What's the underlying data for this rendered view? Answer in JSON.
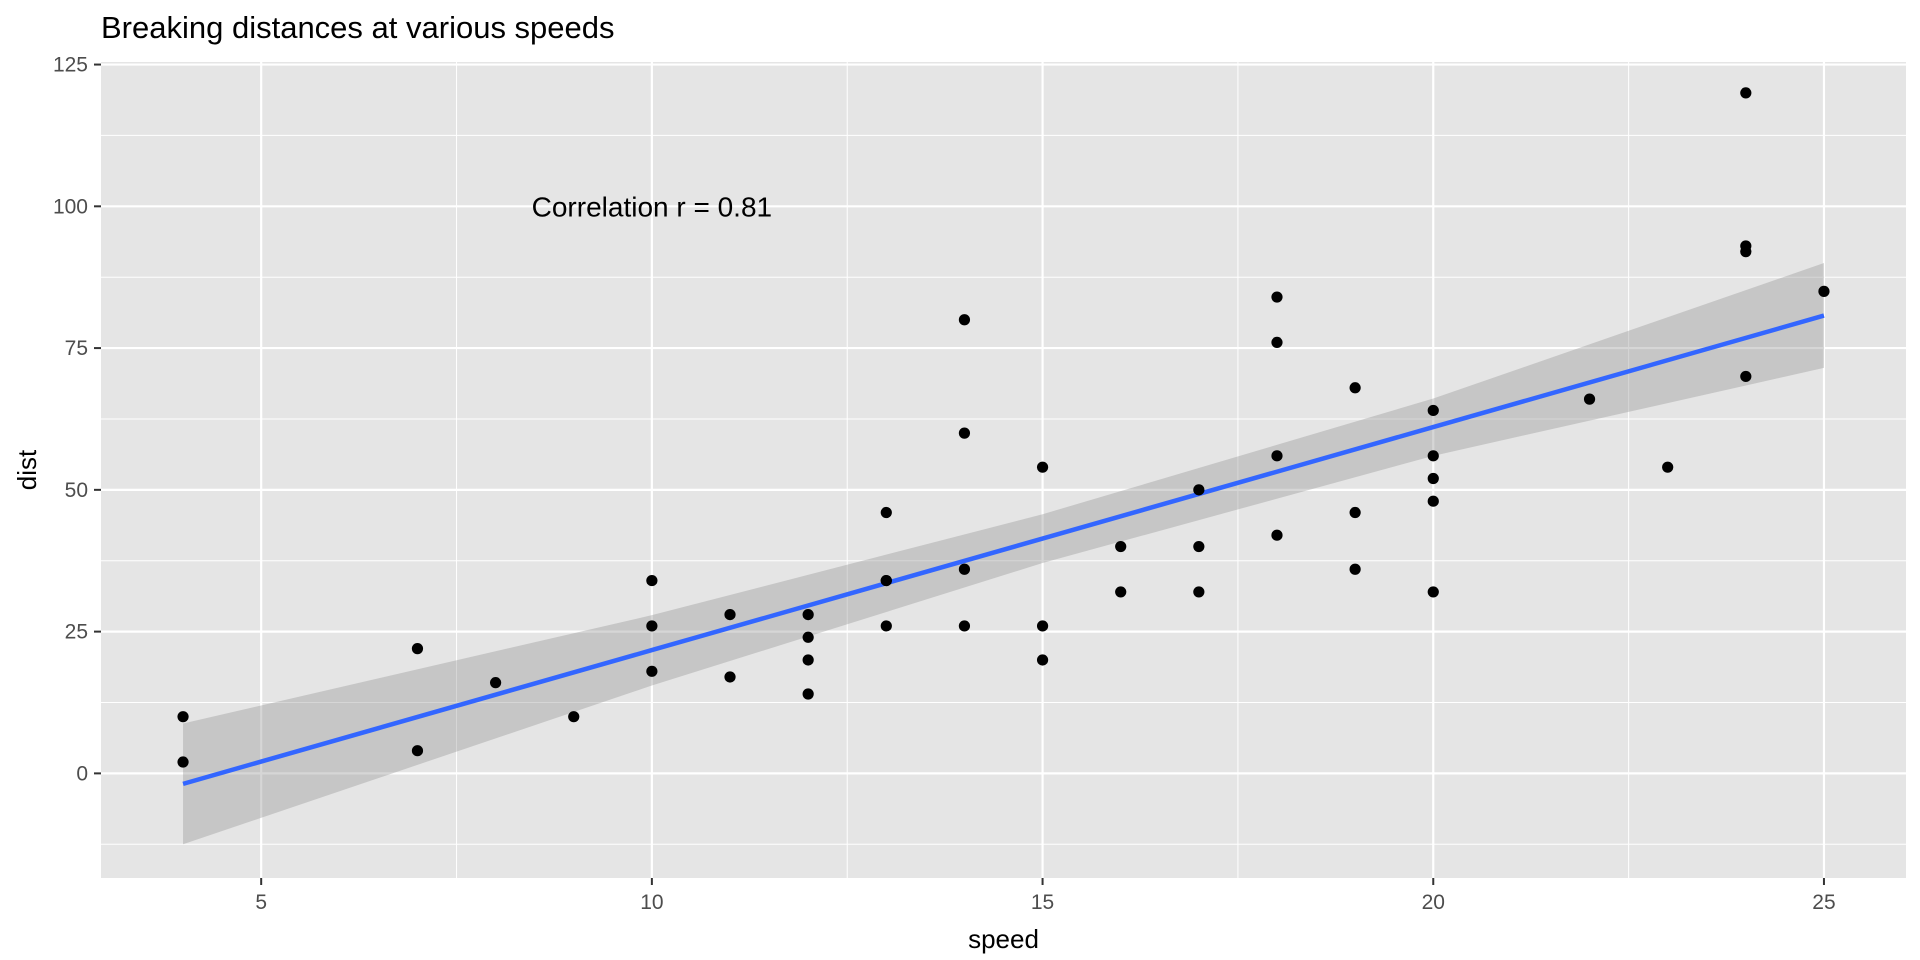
{
  "chart_data": {
    "type": "scatter",
    "title": "Breaking distances at various speeds",
    "xlabel": "speed",
    "ylabel": "dist",
    "xlim": [
      2.95,
      26.05
    ],
    "ylim": [
      -18.45,
      125.45
    ],
    "x_ticks": [
      5,
      10,
      15,
      20,
      25
    ],
    "y_ticks": [
      0,
      25,
      50,
      75,
      100,
      125
    ],
    "x_tick_labels": [
      "5",
      "10",
      "15",
      "20",
      "25"
    ],
    "y_tick_labels": [
      "0",
      "25",
      "50",
      "75",
      "100",
      "125"
    ],
    "grid": true,
    "annotation": {
      "text": "Correlation r = 0.81",
      "x": 10,
      "y": 100
    },
    "points": [
      {
        "x": 4,
        "y": 2
      },
      {
        "x": 4,
        "y": 10
      },
      {
        "x": 7,
        "y": 4
      },
      {
        "x": 7,
        "y": 22
      },
      {
        "x": 8,
        "y": 16
      },
      {
        "x": 9,
        "y": 10
      },
      {
        "x": 10,
        "y": 18
      },
      {
        "x": 10,
        "y": 26
      },
      {
        "x": 10,
        "y": 34
      },
      {
        "x": 11,
        "y": 17
      },
      {
        "x": 11,
        "y": 28
      },
      {
        "x": 12,
        "y": 14
      },
      {
        "x": 12,
        "y": 20
      },
      {
        "x": 12,
        "y": 24
      },
      {
        "x": 12,
        "y": 28
      },
      {
        "x": 13,
        "y": 26
      },
      {
        "x": 13,
        "y": 34
      },
      {
        "x": 13,
        "y": 34
      },
      {
        "x": 13,
        "y": 46
      },
      {
        "x": 14,
        "y": 26
      },
      {
        "x": 14,
        "y": 36
      },
      {
        "x": 14,
        "y": 60
      },
      {
        "x": 14,
        "y": 80
      },
      {
        "x": 15,
        "y": 20
      },
      {
        "x": 15,
        "y": 26
      },
      {
        "x": 15,
        "y": 54
      },
      {
        "x": 16,
        "y": 32
      },
      {
        "x": 16,
        "y": 40
      },
      {
        "x": 17,
        "y": 32
      },
      {
        "x": 17,
        "y": 40
      },
      {
        "x": 17,
        "y": 50
      },
      {
        "x": 18,
        "y": 42
      },
      {
        "x": 18,
        "y": 56
      },
      {
        "x": 18,
        "y": 76
      },
      {
        "x": 18,
        "y": 84
      },
      {
        "x": 19,
        "y": 36
      },
      {
        "x": 19,
        "y": 46
      },
      {
        "x": 19,
        "y": 68
      },
      {
        "x": 20,
        "y": 32
      },
      {
        "x": 20,
        "y": 48
      },
      {
        "x": 20,
        "y": 52
      },
      {
        "x": 20,
        "y": 56
      },
      {
        "x": 20,
        "y": 64
      },
      {
        "x": 22,
        "y": 66
      },
      {
        "x": 23,
        "y": 54
      },
      {
        "x": 24,
        "y": 70
      },
      {
        "x": 24,
        "y": 92
      },
      {
        "x": 24,
        "y": 93
      },
      {
        "x": 24,
        "y": 120
      },
      {
        "x": 25,
        "y": 85
      }
    ],
    "regression": {
      "x": [
        4,
        10,
        15,
        20,
        25
      ],
      "fit": [
        -1.85,
        21.74,
        41.41,
        61.07,
        80.73
      ],
      "lower": [
        -12.5,
        15.5,
        37.1,
        56.0,
        71.5
      ],
      "upper": [
        8.8,
        27.9,
        45.7,
        66.1,
        90.0
      ]
    },
    "colors": {
      "panel": "#e5e5e5",
      "grid": "#ffffff",
      "point": "#000000",
      "line": "#3366ff",
      "ribbon": "#999999"
    }
  }
}
